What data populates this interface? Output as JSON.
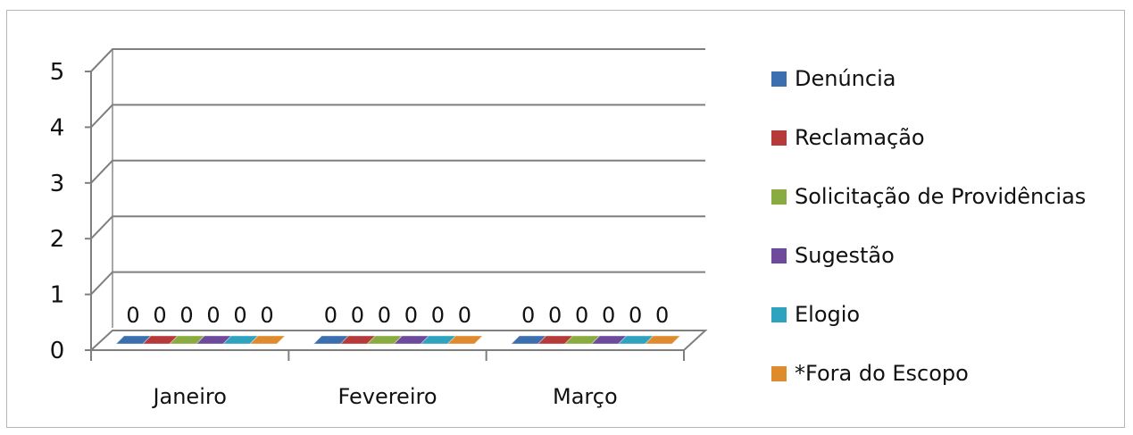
{
  "chart_data": {
    "type": "bar",
    "categories": [
      "Janeiro",
      "Fevereiro",
      "Março"
    ],
    "series": [
      {
        "name": "Denúncia",
        "values": [
          0,
          0,
          0
        ],
        "color": "#3c6fb0"
      },
      {
        "name": "Reclamação",
        "values": [
          0,
          0,
          0
        ],
        "color": "#b73a3a"
      },
      {
        "name": "Solicitação de Providências",
        "values": [
          0,
          0,
          0
        ],
        "color": "#8aab3f"
      },
      {
        "name": "Sugestão",
        "values": [
          0,
          0,
          0
        ],
        "color": "#6e4a9c"
      },
      {
        "name": "Elogio",
        "values": [
          0,
          0,
          0
        ],
        "color": "#2ea3bf"
      },
      {
        "name": "*Fora do Escopo",
        "values": [
          0,
          0,
          0
        ],
        "color": "#e08a2e"
      }
    ],
    "y_ticks": [
      "0",
      "1",
      "2",
      "3",
      "4",
      "5"
    ],
    "ylim": [
      0,
      5
    ],
    "grid": true,
    "legend_position": "right",
    "style": "3d"
  }
}
